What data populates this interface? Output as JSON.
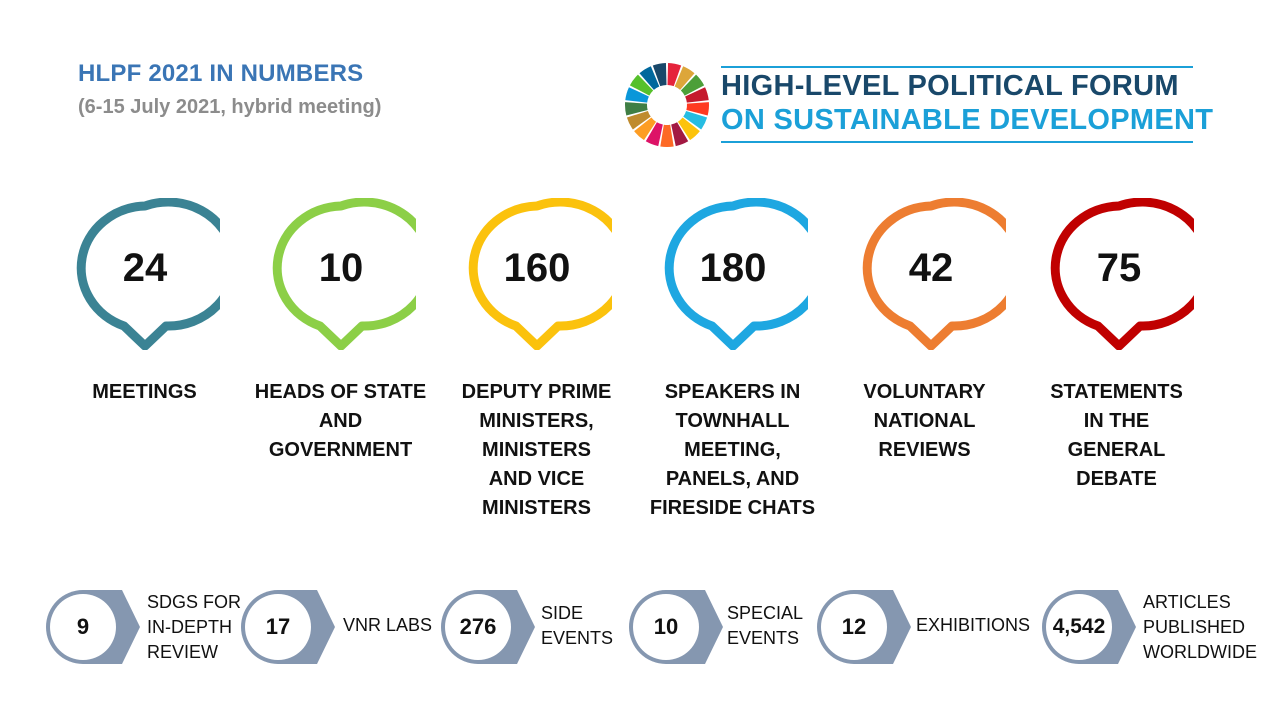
{
  "header": {
    "title": "HLPF 2021 IN NUMBERS",
    "subtitle": "(6-15 July 2021, hybrid meeting)"
  },
  "logo": {
    "icon": "sdg-wheel-icon",
    "line1": "HIGH-LEVEL POLITICAL FORUM",
    "line2": "ON SUSTAINABLE DEVELOPMENT"
  },
  "highlights": [
    {
      "value": "24",
      "label_lines": [
        "MEETINGS"
      ],
      "color": "#3b8394"
    },
    {
      "value": "10",
      "label_lines": [
        "HEADS OF STATE",
        "AND",
        "GOVERNMENT"
      ],
      "color": "#8ccf47"
    },
    {
      "value": "160",
      "label_lines": [
        "DEPUTY PRIME",
        "MINISTERS,",
        "MINISTERS",
        "AND VICE",
        "MINISTERS"
      ],
      "color": "#fbc20d"
    },
    {
      "value": "180",
      "label_lines": [
        "SPEAKERS IN",
        "TOWNHALL",
        "MEETING,",
        "PANELS, AND",
        "FIRESIDE CHATS"
      ],
      "color": "#1ea7e1"
    },
    {
      "value": "42",
      "label_lines": [
        "VOLUNTARY",
        "NATIONAL",
        "REVIEWS"
      ],
      "color": "#ed7d31"
    },
    {
      "value": "75",
      "label_lines": [
        "STATEMENTS",
        "IN THE",
        "GENERAL",
        "DEBATE"
      ],
      "color": "#c00000"
    }
  ],
  "stats": [
    {
      "value": "9",
      "label_lines": [
        "SDGS FOR",
        "IN-DEPTH",
        "REVIEW"
      ]
    },
    {
      "value": "17",
      "label_lines": [
        "VNR LABS"
      ]
    },
    {
      "value": "276",
      "label_lines": [
        "SIDE",
        "EVENTS"
      ]
    },
    {
      "value": "10",
      "label_lines": [
        "SPECIAL",
        "EVENTS"
      ]
    },
    {
      "value": "12",
      "label_lines": [
        "EXHIBITIONS"
      ]
    },
    {
      "value": "4,542",
      "label_lines": [
        "ARTICLES",
        "PUBLISHED",
        "WORLDWIDE"
      ]
    }
  ],
  "colors": {
    "title": "#3a75b5",
    "stat_shape": "#8597b0",
    "forum_dark": "#19486a",
    "forum_light": "#1ba0d8"
  }
}
